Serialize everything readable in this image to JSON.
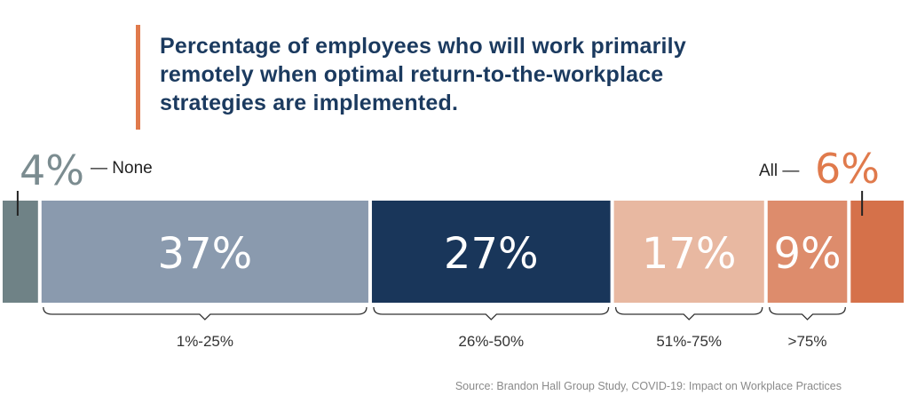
{
  "chart_data": {
    "type": "bar",
    "subtype": "stacked-100",
    "title": "Percentage of employees who will work primarily remotely when optimal return-to-the-workplace strategies are implemented.",
    "categories": [
      "None",
      "1%-25%",
      "26%-50%",
      "51%-75%",
      ">75%",
      "All"
    ],
    "values": [
      4,
      37,
      27,
      17,
      9,
      6
    ],
    "value_labels": [
      "4%",
      "37%",
      "27%",
      "17%",
      "9%",
      "6%"
    ],
    "colors": [
      "#6f8286",
      "#8a9aae",
      "#19365a",
      "#e8b8a1",
      "#dd8c6c",
      "#d5714a"
    ],
    "callouts": {
      "left": {
        "label": "None",
        "value": "4%",
        "color": "#7b8c90"
      },
      "right": {
        "label": "All",
        "value": "6%",
        "color": "#e07a4c"
      }
    },
    "xlim": [
      0,
      100
    ],
    "grid": false,
    "legend": "none"
  },
  "accent_color": "#e07a4c",
  "source": "Source: Brandon Hall Group Study, COVID-19: Impact on Workplace Practices"
}
